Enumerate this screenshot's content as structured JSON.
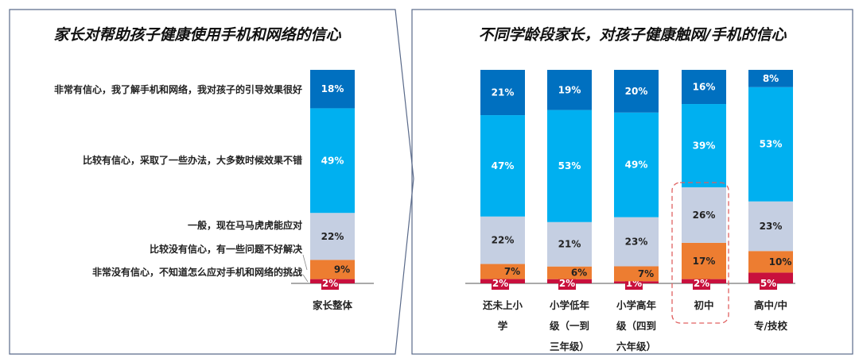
{
  "chart_data": [
    {
      "type": "bar",
      "stacked": true,
      "title": "家长对帮助孩子健康使用手机和网络的信心",
      "categories": [
        "家长整体"
      ],
      "series": [
        {
          "name": "非常没有信心，不知道怎么应对手机和网络的挑战",
          "color": "#c8103d",
          "values": [
            2
          ]
        },
        {
          "name": "比较没有信心，有一些问题不好解决",
          "color": "#ed7d31",
          "values": [
            9
          ]
        },
        {
          "name": "一般，现在马马虎虎能应对",
          "color": "#c5cfe2",
          "values": [
            22
          ]
        },
        {
          "name": "比较有信心，采取了一些办法，大多数时候效果不错",
          "color": "#00b0f0",
          "values": [
            49
          ]
        },
        {
          "name": "非常有信心，我了解手机和网络，我对孩子的引导效果很好",
          "color": "#0070c0",
          "values": [
            18
          ]
        }
      ],
      "unit": "%"
    },
    {
      "type": "bar",
      "stacked": true,
      "title": "不同学龄段家长，对孩子健康触网/手机的信心",
      "categories": [
        "还未上小学",
        "小学低年级（一到三年级）",
        "小学高年级（四到六年级）",
        "初中",
        "高中/中专/技校"
      ],
      "highlight": "初中",
      "series": [
        {
          "name": "非常没有信心",
          "color": "#c8103d",
          "values": [
            2,
            2,
            1,
            2,
            5
          ]
        },
        {
          "name": "比较没有信心",
          "color": "#ed7d31",
          "values": [
            7,
            6,
            7,
            17,
            10
          ]
        },
        {
          "name": "一般",
          "color": "#c5cfe2",
          "values": [
            22,
            21,
            23,
            26,
            23
          ]
        },
        {
          "name": "比较有信心",
          "color": "#00b0f0",
          "values": [
            47,
            53,
            49,
            39,
            53
          ]
        },
        {
          "name": "非常有信心",
          "color": "#0070c0",
          "values": [
            21,
            19,
            20,
            16,
            8
          ]
        }
      ],
      "unit": "%"
    }
  ]
}
